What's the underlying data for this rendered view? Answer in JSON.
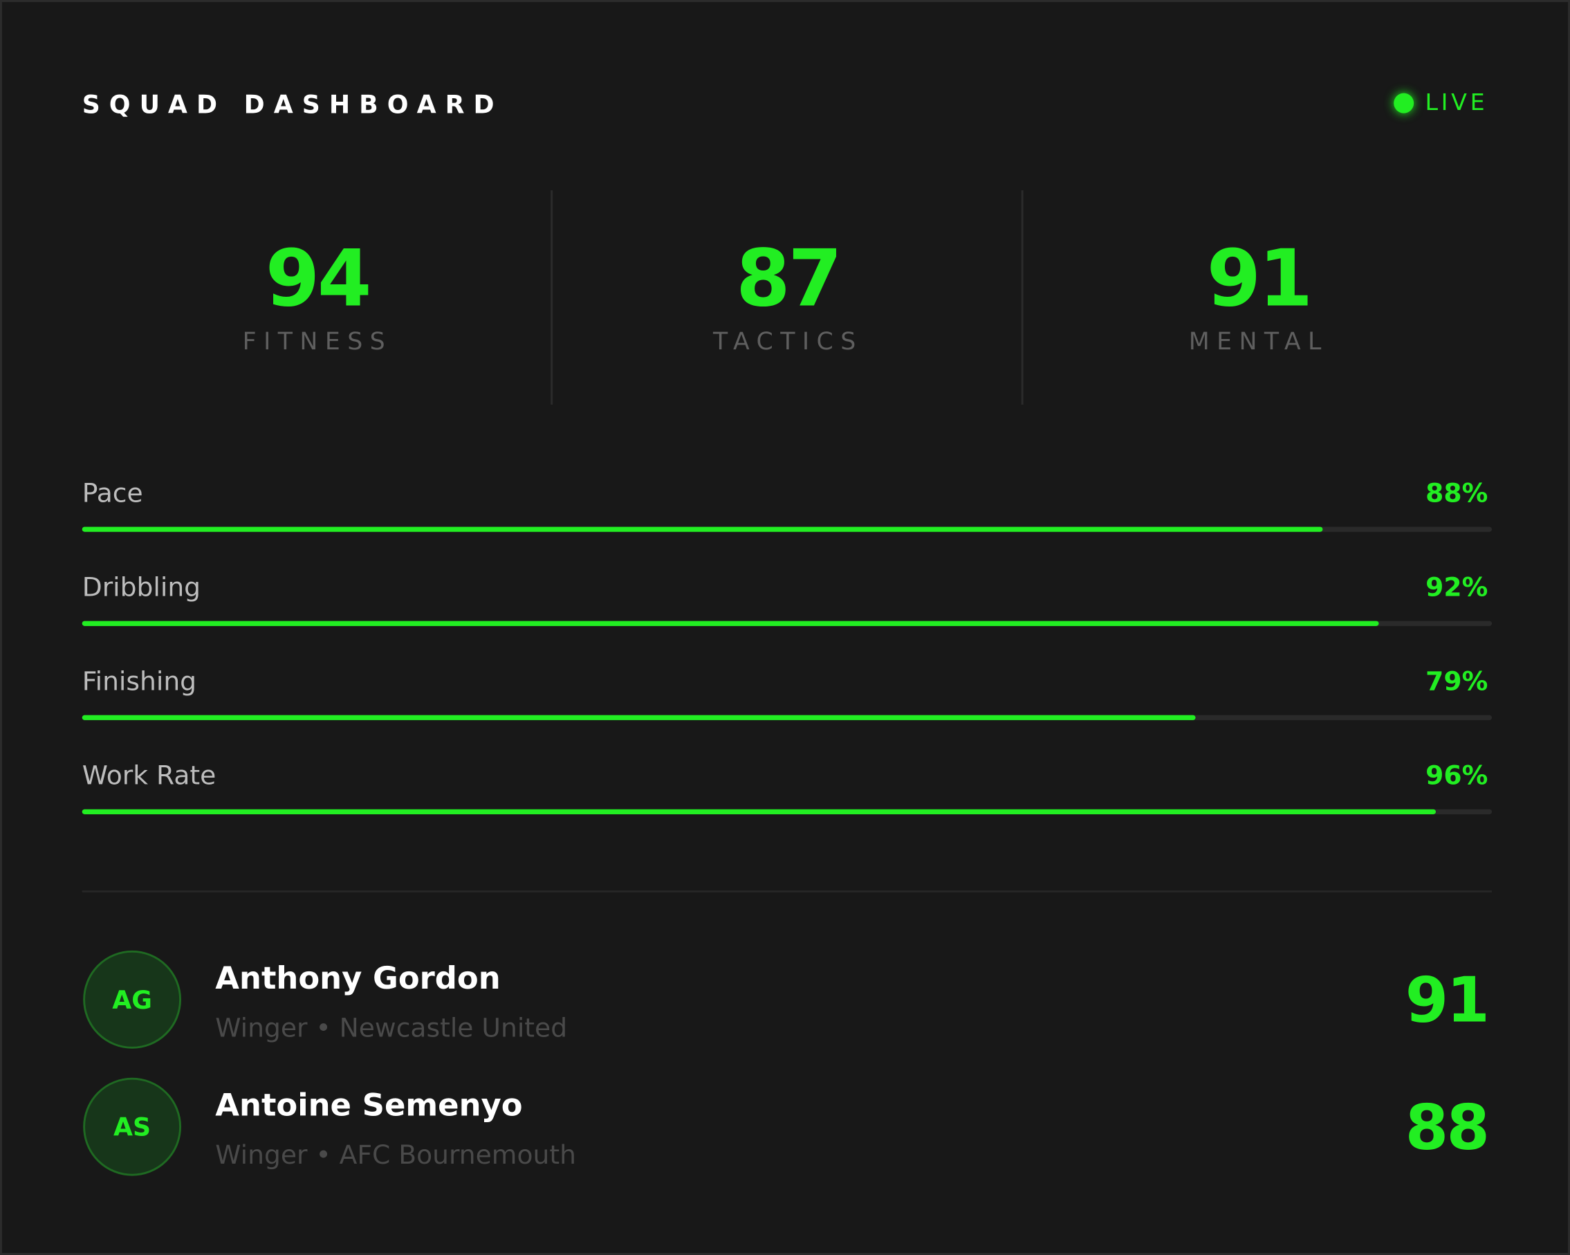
{
  "header": {
    "title": "SQUAD DASHBOARD",
    "status": "LIVE"
  },
  "stats": [
    {
      "value": 94,
      "label": "FITNESS"
    },
    {
      "value": 87,
      "label": "TACTICS"
    },
    {
      "value": 91,
      "label": "MENTAL"
    }
  ],
  "skills": {
    "xlim": [
      0,
      100
    ],
    "items": [
      {
        "name": "Pace",
        "value": 88,
        "value_label": "88%"
      },
      {
        "name": "Dribbling",
        "value": 92,
        "value_label": "92%"
      },
      {
        "name": "Finishing",
        "value": 79,
        "value_label": "79%"
      },
      {
        "name": "Work Rate",
        "value": 96,
        "value_label": "96%"
      }
    ]
  },
  "players": [
    {
      "initials": "AG",
      "name": "Anthony Gordon",
      "details": "Winger • Newcastle United",
      "rating": 91
    },
    {
      "initials": "AS",
      "name": "Antoine Semenyo",
      "details": "Winger • AFC Bournemouth",
      "rating": 88
    }
  ]
}
